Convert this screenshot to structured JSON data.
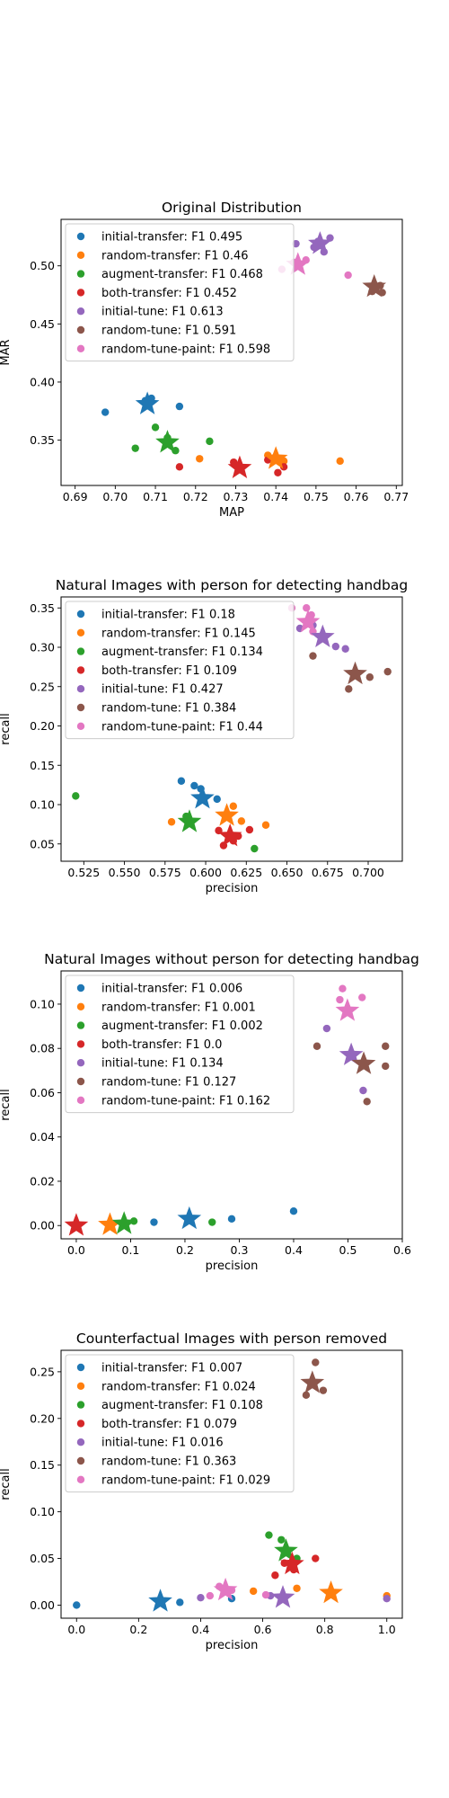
{
  "chart_data": [
    {
      "type": "scatter",
      "title": "Original Distribution",
      "xlabel": "MAP",
      "ylabel": "MAR",
      "xlim": [
        0.6865,
        0.7715
      ],
      "ylim": [
        0.311,
        0.54
      ],
      "xticks": [
        0.69,
        0.7,
        0.71,
        0.72,
        0.73,
        0.74,
        0.75,
        0.76,
        0.77
      ],
      "yticks": [
        0.35,
        0.4,
        0.45,
        0.5
      ],
      "xtick_labels": [
        "0.69",
        "0.70",
        "0.71",
        "0.72",
        "0.73",
        "0.74",
        "0.75",
        "0.76",
        "0.77"
      ],
      "ytick_labels": [
        "0.35",
        "0.40",
        "0.45",
        "0.50"
      ],
      "legend_loc": "upper-left",
      "series": [
        {
          "name": "initial-transfer: F1 0.495",
          "color": "#1f77b4",
          "points": [
            [
              0.6975,
              0.374
            ],
            [
              0.7075,
              0.384
            ],
            [
              0.709,
              0.386
            ],
            [
              0.716,
              0.379
            ]
          ],
          "star": [
            0.708,
            0.381
          ]
        },
        {
          "name": "random-transfer: F1 0.46",
          "color": "#ff7f0e",
          "points": [
            [
              0.721,
              0.334
            ],
            [
              0.738,
              0.337
            ],
            [
              0.741,
              0.334
            ],
            [
              0.742,
              0.332
            ],
            [
              0.756,
              0.332
            ]
          ],
          "star": [
            0.74,
            0.334
          ]
        },
        {
          "name": "augment-transfer: F1 0.468",
          "color": "#2ca02c",
          "points": [
            [
              0.705,
              0.343
            ],
            [
              0.71,
              0.361
            ],
            [
              0.713,
              0.352
            ],
            [
              0.715,
              0.341
            ],
            [
              0.7235,
              0.349
            ]
          ],
          "star": [
            0.713,
            0.348
          ]
        },
        {
          "name": "both-transfer: F1 0.452",
          "color": "#d62728",
          "points": [
            [
              0.716,
              0.327
            ],
            [
              0.7295,
              0.331
            ],
            [
              0.738,
              0.333
            ],
            [
              0.7405,
              0.322
            ],
            [
              0.742,
              0.327
            ]
          ],
          "star": [
            0.731,
            0.326
          ]
        },
        {
          "name": "initial-tune: F1 0.613",
          "color": "#9467bd",
          "points": [
            [
              0.745,
              0.519
            ],
            [
              0.7495,
              0.516
            ],
            [
              0.7505,
              0.521
            ],
            [
              0.752,
              0.512
            ],
            [
              0.7535,
              0.524
            ]
          ],
          "star": [
            0.751,
            0.519
          ]
        },
        {
          "name": "random-tune: F1 0.591",
          "color": "#8c564b",
          "points": [
            [
              0.764,
              0.478
            ],
            [
              0.766,
              0.483
            ],
            [
              0.7665,
              0.477
            ]
          ],
          "star": [
            0.7645,
            0.482
          ]
        },
        {
          "name": "random-tune-paint: F1 0.598",
          "color": "#e377c2",
          "points": [
            [
              0.7415,
              0.497
            ],
            [
              0.7445,
              0.503
            ],
            [
              0.7475,
              0.505
            ],
            [
              0.758,
              0.492
            ]
          ],
          "star": [
            0.7455,
            0.501
          ]
        }
      ]
    },
    {
      "type": "scatter",
      "title": "Natural Images with person for detecting handbag",
      "xlabel": "precision",
      "ylabel": "recall",
      "xlim": [
        0.511,
        0.721
      ],
      "ylim": [
        0.028,
        0.364
      ],
      "xticks": [
        0.525,
        0.55,
        0.575,
        0.6,
        0.625,
        0.65,
        0.675,
        0.7
      ],
      "yticks": [
        0.05,
        0.1,
        0.15,
        0.2,
        0.25,
        0.3,
        0.35
      ],
      "xtick_labels": [
        "0.525",
        "0.550",
        "0.575",
        "0.600",
        "0.625",
        "0.650",
        "0.675",
        "0.700"
      ],
      "ytick_labels": [
        "0.05",
        "0.10",
        "0.15",
        "0.20",
        "0.25",
        "0.30",
        "0.35"
      ],
      "legend_loc": "upper-left",
      "series": [
        {
          "name": "initial-transfer: F1 0.18",
          "color": "#1f77b4",
          "points": [
            [
              0.585,
              0.13
            ],
            [
              0.593,
              0.124
            ],
            [
              0.597,
              0.12
            ],
            [
              0.607,
              0.107
            ]
          ],
          "star": [
            0.598,
            0.108
          ]
        },
        {
          "name": "random-transfer: F1 0.145",
          "color": "#ff7f0e",
          "points": [
            [
              0.579,
              0.078
            ],
            [
              0.613,
              0.088
            ],
            [
              0.617,
              0.098
            ],
            [
              0.622,
              0.079
            ],
            [
              0.637,
              0.074
            ]
          ],
          "star": [
            0.613,
            0.086
          ]
        },
        {
          "name": "augment-transfer: F1 0.134",
          "color": "#2ca02c",
          "points": [
            [
              0.52,
              0.111
            ],
            [
              0.588,
              0.085
            ],
            [
              0.63,
              0.044
            ]
          ],
          "star": [
            0.59,
            0.078
          ]
        },
        {
          "name": "both-transfer: F1 0.109",
          "color": "#d62728",
          "points": [
            [
              0.608,
              0.067
            ],
            [
              0.611,
              0.048
            ],
            [
              0.617,
              0.054
            ],
            [
              0.62,
              0.06
            ],
            [
              0.627,
              0.068
            ]
          ],
          "star": [
            0.615,
            0.06
          ]
        },
        {
          "name": "initial-tune: F1 0.427",
          "color": "#9467bd",
          "points": [
            [
              0.658,
              0.324
            ],
            [
              0.666,
              0.328
            ],
            [
              0.68,
              0.301
            ],
            [
              0.686,
              0.298
            ]
          ],
          "star": [
            0.672,
            0.313
          ]
        },
        {
          "name": "random-tune: F1 0.384",
          "color": "#8c564b",
          "points": [
            [
              0.666,
              0.289
            ],
            [
              0.688,
              0.247
            ],
            [
              0.701,
              0.262
            ],
            [
              0.712,
              0.269
            ]
          ],
          "star": [
            0.692,
            0.266
          ]
        },
        {
          "name": "random-tune-paint: F1 0.44",
          "color": "#e377c2",
          "points": [
            [
              0.653,
              0.35
            ],
            [
              0.662,
              0.35
            ],
            [
              0.666,
              0.32
            ],
            [
              0.665,
              0.341
            ]
          ],
          "star": [
            0.663,
            0.332
          ]
        }
      ]
    },
    {
      "type": "scatter",
      "title": "Natural Images without person for detecting handbag",
      "xlabel": "precision",
      "ylabel": "recall",
      "xlim": [
        -0.028,
        0.6
      ],
      "ylim": [
        -0.006,
        0.115
      ],
      "xticks": [
        0.0,
        0.1,
        0.2,
        0.3,
        0.4,
        0.5,
        0.6
      ],
      "yticks": [
        0.0,
        0.02,
        0.04,
        0.06,
        0.08,
        0.1
      ],
      "xtick_labels": [
        "0.0",
        "0.1",
        "0.2",
        "0.3",
        "0.4",
        "0.5",
        "0.6"
      ],
      "ytick_labels": [
        "0.00",
        "0.02",
        "0.04",
        "0.06",
        "0.08",
        "0.10"
      ],
      "legend_loc": "upper-left",
      "series": [
        {
          "name": "initial-transfer: F1 0.006",
          "color": "#1f77b4",
          "points": [
            [
              0.143,
              0.0015
            ],
            [
              0.286,
              0.003
            ],
            [
              0.4,
              0.0065
            ]
          ],
          "star": [
            0.208,
            0.003
          ]
        },
        {
          "name": "random-transfer: F1 0.001",
          "color": "#ff7f0e",
          "points": [
            [
              0.061,
              0.0005
            ]
          ],
          "star": [
            0.062,
            0.0003
          ]
        },
        {
          "name": "augment-transfer: F1 0.002",
          "color": "#2ca02c",
          "points": [
            [
              0.106,
              0.002
            ],
            [
              0.25,
              0.0015
            ]
          ],
          "star": [
            0.088,
            0.0008
          ]
        },
        {
          "name": "both-transfer: F1 0.0",
          "color": "#d62728",
          "points": [],
          "star": [
            0.0,
            0.0
          ]
        },
        {
          "name": "initial-tune: F1 0.134",
          "color": "#9467bd",
          "points": [
            [
              0.461,
              0.089
            ],
            [
              0.528,
              0.061
            ],
            [
              0.503,
              0.077
            ]
          ],
          "star": [
            0.506,
            0.077
          ]
        },
        {
          "name": "random-tune: F1 0.127",
          "color": "#8c564b",
          "points": [
            [
              0.443,
              0.081
            ],
            [
              0.535,
              0.056
            ],
            [
              0.569,
              0.081
            ],
            [
              0.569,
              0.072
            ]
          ],
          "star": [
            0.529,
            0.073
          ]
        },
        {
          "name": "random-tune-paint: F1 0.162",
          "color": "#e377c2",
          "points": [
            [
              0.485,
              0.102
            ],
            [
              0.49,
              0.107
            ],
            [
              0.526,
              0.103
            ]
          ],
          "star": [
            0.499,
            0.097
          ]
        }
      ]
    },
    {
      "type": "scatter",
      "title": "Counterfactual Images with person removed",
      "xlabel": "precision",
      "ylabel": "recall",
      "xlim": [
        -0.05,
        1.05
      ],
      "ylim": [
        -0.014,
        0.273
      ],
      "xticks": [
        0.0,
        0.2,
        0.4,
        0.6,
        0.8,
        1.0
      ],
      "yticks": [
        0.0,
        0.05,
        0.1,
        0.15,
        0.2,
        0.25
      ],
      "xtick_labels": [
        "0.0",
        "0.2",
        "0.4",
        "0.6",
        "0.8",
        "1.0"
      ],
      "ytick_labels": [
        "0.00",
        "0.05",
        "0.10",
        "0.15",
        "0.20",
        "0.25"
      ],
      "legend_loc": "upper-left",
      "series": [
        {
          "name": "initial-transfer: F1 0.007",
          "color": "#1f77b4",
          "points": [
            [
              0.0,
              0.0
            ],
            [
              0.333,
              0.003
            ],
            [
              0.5,
              0.007
            ]
          ],
          "star": [
            0.27,
            0.004
          ]
        },
        {
          "name": "random-transfer: F1 0.024",
          "color": "#ff7f0e",
          "points": [
            [
              0.57,
              0.015
            ],
            [
              0.71,
              0.018
            ],
            [
              1.0,
              0.01
            ]
          ],
          "star": [
            0.82,
            0.013
          ]
        },
        {
          "name": "augment-transfer: F1 0.108",
          "color": "#2ca02c",
          "points": [
            [
              0.62,
              0.075
            ],
            [
              0.66,
              0.07
            ],
            [
              0.71,
              0.05
            ]
          ],
          "star": [
            0.675,
            0.058
          ]
        },
        {
          "name": "both-transfer: F1 0.079",
          "color": "#d62728",
          "points": [
            [
              0.64,
              0.032
            ],
            [
              0.7,
              0.038
            ],
            [
              0.77,
              0.05
            ],
            [
              0.67,
              0.045
            ]
          ],
          "star": [
            0.695,
            0.044
          ]
        },
        {
          "name": "initial-tune: F1 0.016",
          "color": "#9467bd",
          "points": [
            [
              0.4,
              0.008
            ],
            [
              0.625,
              0.01
            ],
            [
              1.0,
              0.007
            ]
          ],
          "star": [
            0.665,
            0.008
          ]
        },
        {
          "name": "random-tune: F1 0.363",
          "color": "#8c564b",
          "points": [
            [
              0.74,
              0.225
            ],
            [
              0.77,
              0.26
            ],
            [
              0.795,
              0.23
            ]
          ],
          "star": [
            0.76,
            0.238
          ]
        },
        {
          "name": "random-tune-paint: F1 0.029",
          "color": "#e377c2",
          "points": [
            [
              0.43,
              0.01
            ],
            [
              0.46,
              0.02
            ],
            [
              0.5,
              0.016
            ],
            [
              0.61,
              0.011
            ]
          ],
          "star": [
            0.48,
            0.016
          ]
        }
      ]
    }
  ]
}
